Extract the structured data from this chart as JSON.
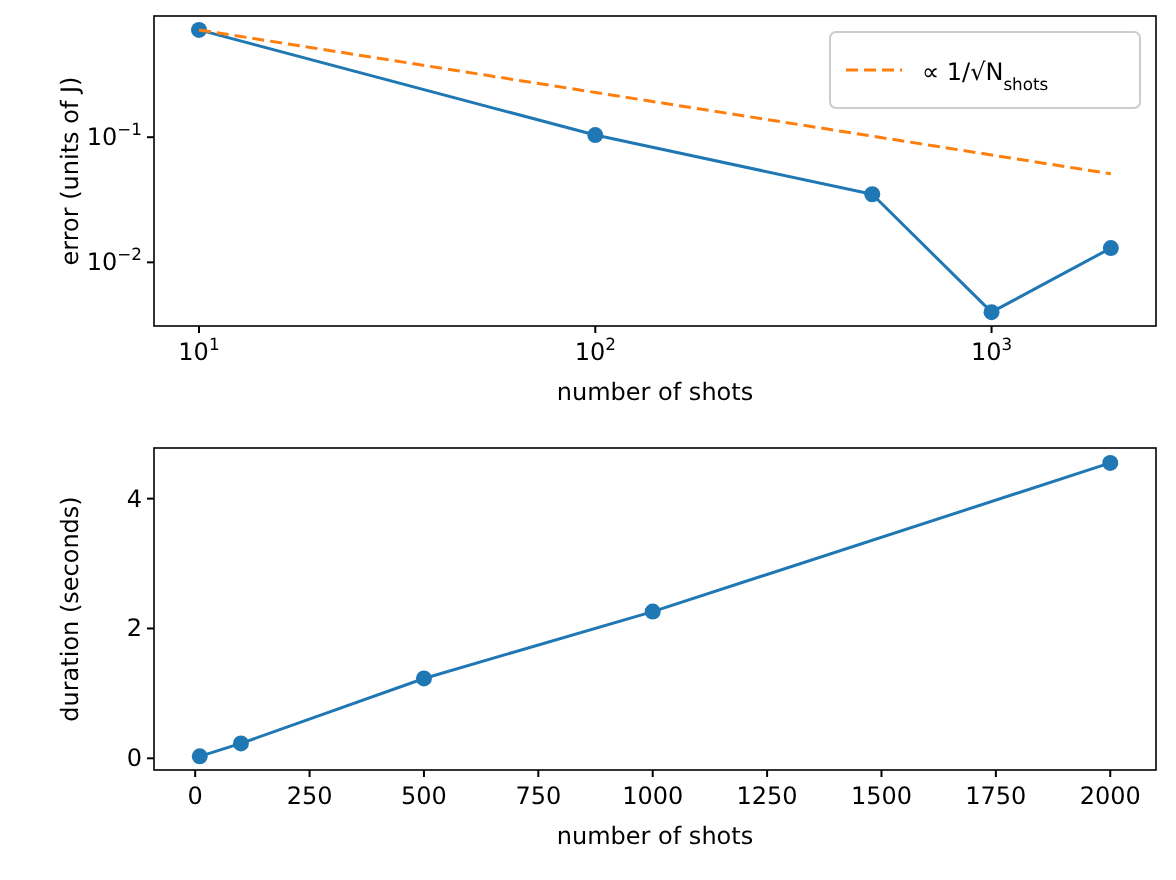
{
  "chart_data": [
    {
      "type": "line",
      "xlabel": "number of shots",
      "ylabel": "error (units of J)",
      "log": "xy",
      "xlim": [
        7.7,
        2600
      ],
      "ylim": [
        0.0031,
        0.93
      ],
      "xticks": [
        {
          "value": 10,
          "label": "10$^{1}$"
        },
        {
          "value": 100,
          "label": "10$^{2}$"
        },
        {
          "value": 1000,
          "label": "10$^{3}$"
        }
      ],
      "yticks": [
        {
          "value": 0.01,
          "label": "10$^{−2}$"
        },
        {
          "value": 0.1,
          "label": "10$^{−1}$"
        }
      ],
      "legend": "top right",
      "series": [
        {
          "color": "#1f77b4",
          "x": [
            10,
            100,
            500,
            1000,
            2000
          ],
          "values": [
            0.72,
            0.104,
            0.035,
            0.004,
            0.013
          ],
          "marker": "circle",
          "line_style": "solid"
        },
        {
          "name": "∝ 1/√N$_{shots}$",
          "color": "#ff7f0e",
          "x": [
            10,
            2000
          ],
          "values": [
            0.72,
            0.051
          ],
          "marker": "none",
          "line_style": "dashed"
        }
      ]
    },
    {
      "type": "line",
      "xlabel": "number of shots",
      "ylabel": "duration (seconds)",
      "xlim": [
        -90,
        2100
      ],
      "ylim": [
        -0.18,
        4.78
      ],
      "xticks": [
        0,
        250,
        500,
        750,
        1000,
        1250,
        1500,
        1750,
        2000
      ],
      "yticks": [
        0,
        2,
        4
      ],
      "series": [
        {
          "color": "#1f77b4",
          "x": [
            10,
            100,
            500,
            1000,
            2000
          ],
          "values": [
            0.03,
            0.23,
            1.23,
            2.26,
            4.55
          ],
          "marker": "circle",
          "line_style": "solid"
        }
      ]
    }
  ]
}
